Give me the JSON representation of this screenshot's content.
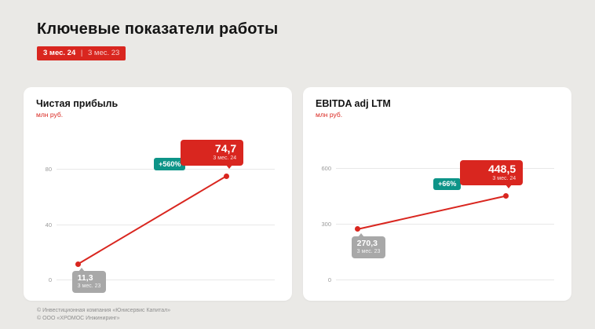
{
  "page": {
    "title": "Ключевые показатели работы",
    "period_badge": {
      "current": "3 мес. 24",
      "separator": "|",
      "previous": "3 мес. 23"
    },
    "footer_lines": [
      "© Инвестиционная компания «Юнисервис Капитал»",
      "© ООО «ХРОМОС Инжиниринг»"
    ]
  },
  "colors": {
    "accent_red": "#d9261f",
    "accent_teal": "#0d9488",
    "muted_gray": "#a8a8a8",
    "background": "#eae9e6"
  },
  "chart_data": [
    {
      "type": "line",
      "title": "Чистая прибыль",
      "ylabel": "млн руб.",
      "categories": [
        "3 мес. 23",
        "3 мес. 24"
      ],
      "values": [
        11.3,
        74.7
      ],
      "value_labels": [
        "11,3",
        "74,7"
      ],
      "delta_label": "+560%",
      "yticks": [
        0,
        40,
        80
      ],
      "ylim": [
        0,
        105
      ],
      "grid": true,
      "legend_position": "none"
    },
    {
      "type": "line",
      "title": "EBITDA adj LTM",
      "ylabel": "млн руб.",
      "categories": [
        "3 мес. 23",
        "3 мес. 24"
      ],
      "values": [
        270.3,
        448.5
      ],
      "value_labels": [
        "270,3",
        "448,5"
      ],
      "delta_label": "+66%",
      "yticks": [
        0,
        300,
        600
      ],
      "ylim": [
        0,
        780
      ],
      "grid": true,
      "legend_position": "none"
    }
  ]
}
